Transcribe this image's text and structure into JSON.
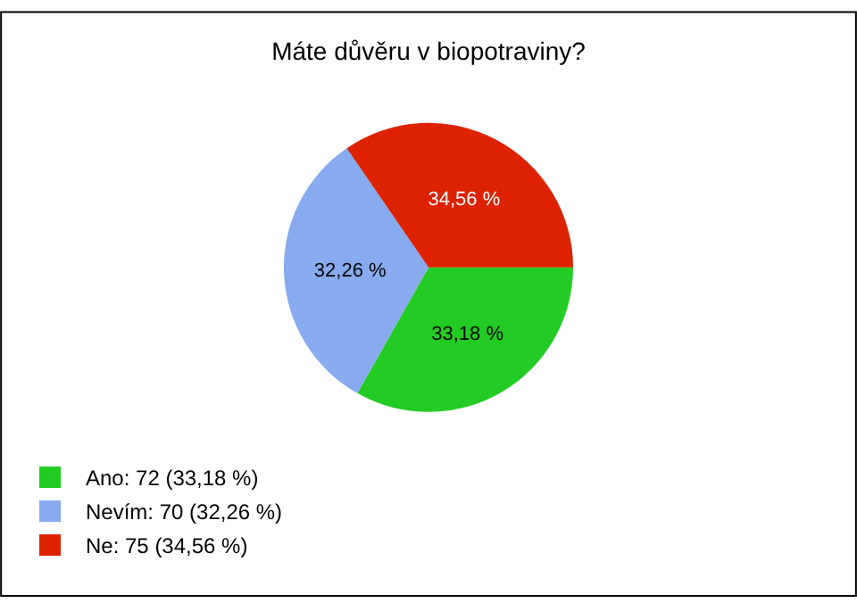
{
  "chart_data": {
    "type": "pie",
    "title": "Máte důvěru v biopotraviny?",
    "categories": [
      "Ano: 72 (33,18 %)",
      "Nevím: 70 (32,26 %)",
      "Ne: 75 (34,56 %)"
    ],
    "values": [
      33.18,
      32.26,
      34.56
    ],
    "value_labels": [
      "33,18 %",
      "32,26 %",
      "34,56 %"
    ],
    "colors": [
      "#22cc22",
      "#88aaee",
      "#dd2200"
    ],
    "legend": "bottom left"
  }
}
